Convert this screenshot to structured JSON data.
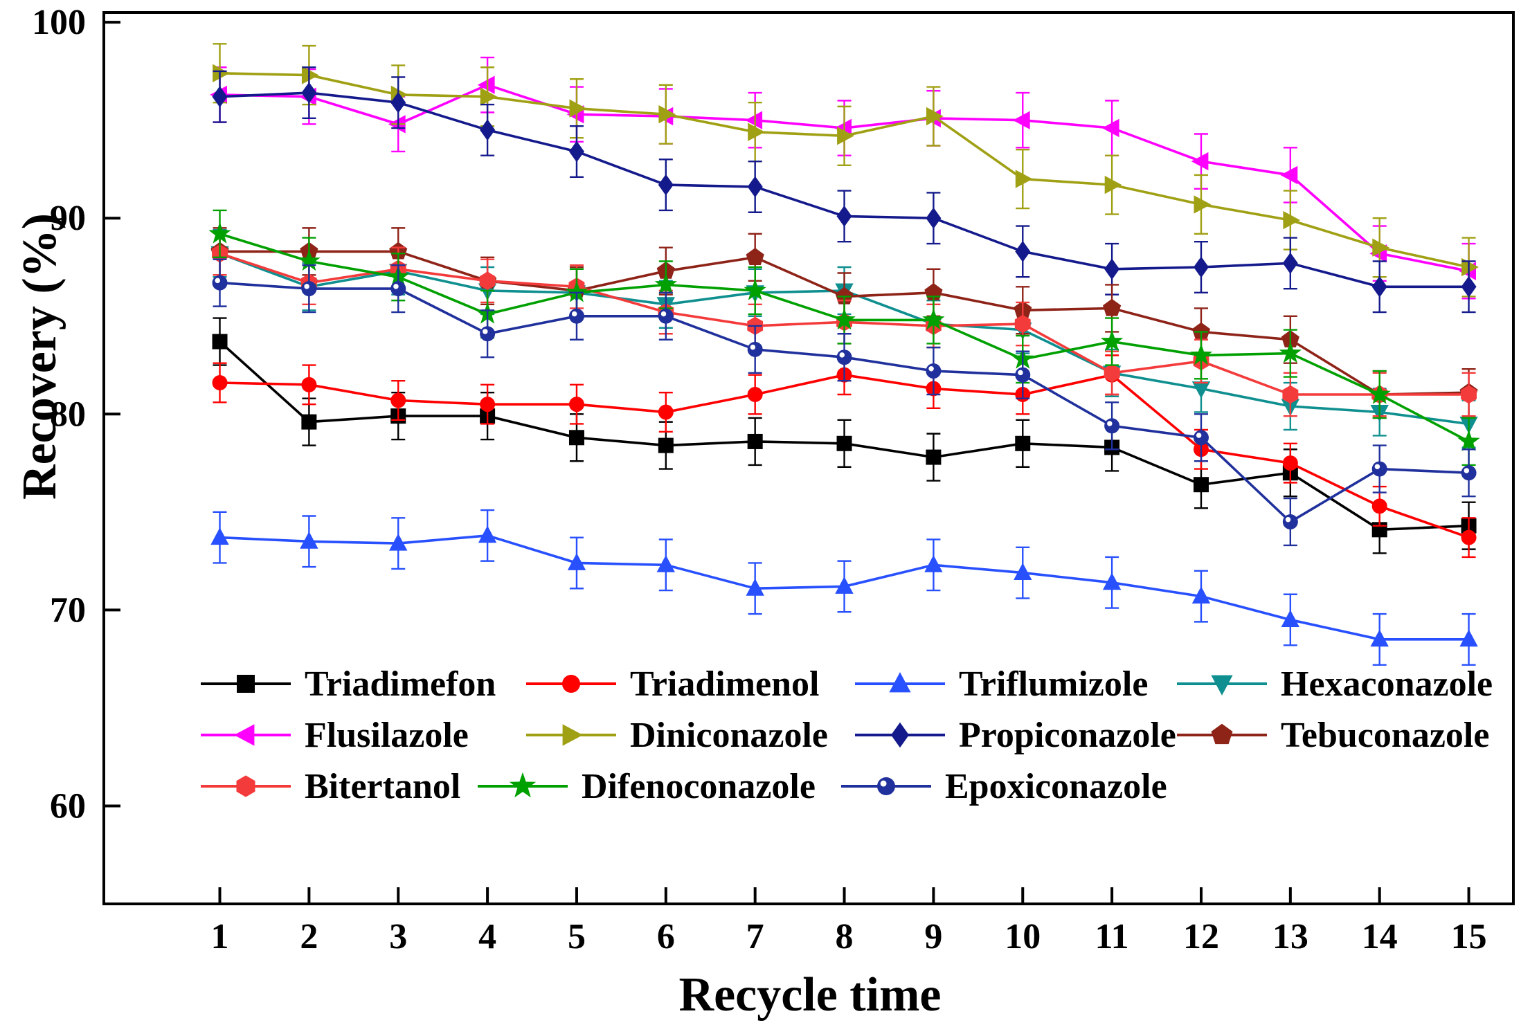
{
  "figure": {
    "background": "#ffffff"
  },
  "chart_data": {
    "type": "line",
    "title": "",
    "xlabel": "Recycle time",
    "ylabel": "Recovery (%)",
    "grid": false,
    "error_bars": true,
    "legend_position": "inside-bottom-left",
    "x": [
      1,
      2,
      3,
      4,
      5,
      6,
      7,
      8,
      9,
      10,
      11,
      12,
      13,
      14,
      15
    ],
    "xticks": [
      1,
      2,
      3,
      4,
      5,
      6,
      7,
      8,
      9,
      10,
      11,
      12,
      13,
      14,
      15
    ],
    "yticks": [
      60,
      70,
      80,
      90,
      100
    ],
    "xlim": [
      -0.3,
      15.5
    ],
    "ylim": [
      55,
      100.5
    ],
    "series": [
      {
        "name": "Triadimefon",
        "color": "#000000",
        "marker": "square",
        "error": 1.2,
        "values": [
          83.7,
          79.6,
          79.9,
          79.9,
          78.8,
          78.4,
          78.6,
          78.5,
          77.8,
          78.5,
          78.3,
          76.4,
          77.0,
          74.1,
          74.3
        ]
      },
      {
        "name": "Triadimenol",
        "color": "#ff0000",
        "marker": "circle",
        "error": 1.0,
        "values": [
          81.6,
          81.5,
          80.7,
          80.5,
          80.5,
          80.1,
          81.0,
          82.0,
          81.3,
          81.0,
          82.0,
          78.2,
          77.5,
          75.3,
          73.7
        ]
      },
      {
        "name": "Triflumizole",
        "color": "#2850ff",
        "marker": "triangle-up",
        "error": 1.3,
        "values": [
          73.7,
          73.5,
          73.4,
          73.8,
          72.4,
          72.3,
          71.1,
          71.2,
          72.3,
          71.9,
          71.4,
          70.7,
          69.5,
          68.5,
          68.5
        ]
      },
      {
        "name": "Hexaconazole",
        "color": "#0f8f8f",
        "marker": "triangle-down",
        "error": 1.2,
        "values": [
          88.2,
          86.5,
          87.3,
          86.3,
          86.2,
          85.6,
          86.2,
          86.3,
          84.6,
          84.3,
          82.1,
          81.3,
          80.4,
          80.1,
          79.5
        ]
      },
      {
        "name": "Flusilazole",
        "color": "#ff00ff",
        "marker": "triangle-left",
        "error": 1.4,
        "values": [
          96.3,
          96.2,
          94.8,
          96.8,
          95.3,
          95.2,
          95.0,
          94.6,
          95.1,
          95.0,
          94.6,
          92.9,
          92.2,
          88.2,
          87.3
        ]
      },
      {
        "name": "Diniconazole",
        "color": "#a0a014",
        "marker": "triangle-right",
        "error": 1.5,
        "values": [
          97.4,
          97.3,
          96.3,
          96.2,
          95.6,
          95.3,
          94.4,
          94.2,
          95.2,
          92.0,
          91.7,
          90.7,
          89.9,
          88.5,
          87.5
        ]
      },
      {
        "name": "Propiconazole",
        "color": "#141a8c",
        "marker": "diamond",
        "error": 1.3,
        "values": [
          96.2,
          96.4,
          95.9,
          94.5,
          93.4,
          91.7,
          91.6,
          90.1,
          90.0,
          88.3,
          87.4,
          87.5,
          87.7,
          86.5,
          86.5
        ]
      },
      {
        "name": "Tebuconazole",
        "color": "#8e2318",
        "marker": "pentagon",
        "error": 1.2,
        "values": [
          88.3,
          88.3,
          88.3,
          86.8,
          86.3,
          87.3,
          88.0,
          86.0,
          86.2,
          85.3,
          85.4,
          84.2,
          83.8,
          81.0,
          81.1
        ]
      },
      {
        "name": "Bitertanol",
        "color": "#f43b3b",
        "marker": "hexagon",
        "error": 1.1,
        "values": [
          88.2,
          86.7,
          87.4,
          86.8,
          86.5,
          85.2,
          84.5,
          84.7,
          84.5,
          84.6,
          82.1,
          82.7,
          81.0,
          81.0,
          81.0
        ]
      },
      {
        "name": "Difenoconazole",
        "color": "#00a000",
        "marker": "star",
        "error": 1.2,
        "values": [
          89.2,
          87.8,
          87.0,
          85.1,
          86.2,
          86.6,
          86.3,
          84.8,
          84.8,
          82.8,
          83.7,
          83.0,
          83.1,
          81.0,
          78.6
        ]
      },
      {
        "name": "Epoxiconazole",
        "color": "#20309c",
        "marker": "circle-dot",
        "error": 1.2,
        "values": [
          86.7,
          86.4,
          86.4,
          84.1,
          85.0,
          85.0,
          83.3,
          82.9,
          82.2,
          82.0,
          79.4,
          78.8,
          74.5,
          77.2,
          77.0
        ]
      }
    ]
  }
}
